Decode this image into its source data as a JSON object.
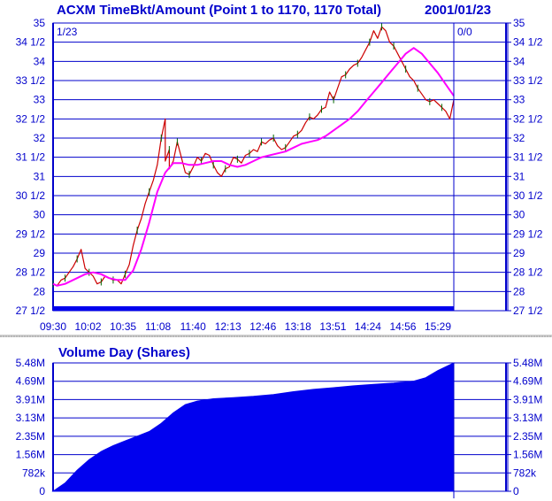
{
  "chart_data": [
    {
      "type": "line",
      "title": "ACXM TimeBkt/Amount (Point 1 to 1170, 1170 Total)",
      "date": "2001/01/23",
      "corner_left": "1/23",
      "corner_right": "0/0",
      "ylim": [
        27.5,
        35
      ],
      "yticks": [
        "27 1/2",
        "28",
        "28 1/2",
        "29",
        "29 1/2",
        "30",
        "30 1/2",
        "31",
        "31 1/2",
        "32",
        "32 1/2",
        "33",
        "33 1/2",
        "34",
        "34 1/2",
        "35"
      ],
      "xticks": [
        "09:30",
        "10:02",
        "10:35",
        "11:08",
        "11:40",
        "12:13",
        "12:46",
        "13:18",
        "13:51",
        "14:24",
        "14:56",
        "15:29"
      ],
      "grid": true,
      "series": [
        {
          "role": "price",
          "color": "#cc0000",
          "x": [
            0,
            0.01,
            0.02,
            0.03,
            0.04,
            0.05,
            0.06,
            0.07,
            0.08,
            0.09,
            0.1,
            0.11,
            0.12,
            0.13,
            0.14,
            0.15,
            0.16,
            0.17,
            0.18,
            0.19,
            0.2,
            0.21,
            0.22,
            0.23,
            0.24,
            0.25,
            0.26,
            0.27,
            0.28,
            0.28,
            0.29,
            0.29,
            0.3,
            0.31,
            0.32,
            0.33,
            0.34,
            0.35,
            0.36,
            0.37,
            0.38,
            0.39,
            0.4,
            0.41,
            0.42,
            0.43,
            0.44,
            0.45,
            0.46,
            0.47,
            0.48,
            0.49,
            0.5,
            0.51,
            0.52,
            0.53,
            0.54,
            0.55,
            0.56,
            0.57,
            0.58,
            0.59,
            0.6,
            0.61,
            0.62,
            0.63,
            0.64,
            0.65,
            0.66,
            0.67,
            0.68,
            0.69,
            0.7,
            0.71,
            0.72,
            0.73,
            0.74,
            0.75,
            0.76,
            0.77,
            0.78,
            0.79,
            0.8,
            0.81,
            0.82,
            0.83,
            0.84,
            0.85,
            0.86,
            0.87,
            0.88,
            0.89,
            0.9,
            0.91,
            0.92,
            0.93,
            0.94,
            0.95,
            0.96,
            0.97,
            0.98,
            0.99,
            1.0
          ],
          "y": [
            28.2,
            28.15,
            28.3,
            28.35,
            28.5,
            28.65,
            28.85,
            29.1,
            28.6,
            28.5,
            28.4,
            28.2,
            28.25,
            28.4,
            28.35,
            28.3,
            28.3,
            28.2,
            28.45,
            28.7,
            29.2,
            29.6,
            29.9,
            30.3,
            30.6,
            30.9,
            31.3,
            32.0,
            32.5,
            31.4,
            31.7,
            31.2,
            31.4,
            31.9,
            31.5,
            31.1,
            31.05,
            31.25,
            31.5,
            31.4,
            31.6,
            31.55,
            31.3,
            31.1,
            31.0,
            31.2,
            31.25,
            31.5,
            31.45,
            31.35,
            31.55,
            31.6,
            31.7,
            31.65,
            31.9,
            31.85,
            31.95,
            32.0,
            31.8,
            31.7,
            31.75,
            31.9,
            32.05,
            32.1,
            32.2,
            32.4,
            32.55,
            32.5,
            32.6,
            32.75,
            32.8,
            33.2,
            33.0,
            33.3,
            33.6,
            33.65,
            33.8,
            33.9,
            33.95,
            34.1,
            34.3,
            34.5,
            34.8,
            34.6,
            34.9,
            34.8,
            34.5,
            34.4,
            34.2,
            34.0,
            33.8,
            33.6,
            33.5,
            33.3,
            33.15,
            33.0,
            32.95,
            33.0,
            32.9,
            32.8,
            32.7,
            32.5,
            33.0
          ]
        },
        {
          "role": "moving-average",
          "color": "#ff00ff",
          "x": [
            0,
            0.01,
            0.03,
            0.05,
            0.08,
            0.1,
            0.12,
            0.14,
            0.16,
            0.18,
            0.2,
            0.22,
            0.24,
            0.26,
            0.28,
            0.3,
            0.32,
            0.34,
            0.36,
            0.38,
            0.4,
            0.42,
            0.44,
            0.46,
            0.48,
            0.5,
            0.52,
            0.54,
            0.56,
            0.58,
            0.6,
            0.62,
            0.64,
            0.66,
            0.68,
            0.7,
            0.72,
            0.74,
            0.76,
            0.78,
            0.8,
            0.82,
            0.84,
            0.86,
            0.88,
            0.9,
            0.92,
            0.94,
            0.96,
            0.98,
            1.0
          ],
          "y": [
            28.2,
            28.15,
            28.2,
            28.3,
            28.45,
            28.5,
            28.45,
            28.35,
            28.3,
            28.3,
            28.55,
            29.1,
            29.8,
            30.6,
            31.1,
            31.35,
            31.35,
            31.3,
            31.3,
            31.35,
            31.4,
            31.4,
            31.3,
            31.25,
            31.3,
            31.4,
            31.5,
            31.55,
            31.6,
            31.65,
            31.75,
            31.85,
            31.9,
            31.95,
            32.05,
            32.2,
            32.35,
            32.5,
            32.7,
            32.95,
            33.2,
            33.45,
            33.7,
            33.95,
            34.2,
            34.35,
            34.2,
            33.95,
            33.7,
            33.4,
            33.1
          ]
        }
      ]
    },
    {
      "type": "area",
      "title": "Volume Day (Shares)",
      "ylim": [
        0,
        5480000
      ],
      "yticks": [
        "0",
        "782k",
        "1.56M",
        "2.35M",
        "3.13M",
        "3.91M",
        "4.69M",
        "5.48M"
      ],
      "grid": true,
      "series": [
        {
          "color": "#0000ee",
          "x": [
            0,
            0.03,
            0.06,
            0.09,
            0.12,
            0.15,
            0.18,
            0.21,
            0.24,
            0.27,
            0.3,
            0.33,
            0.36,
            0.4,
            0.45,
            0.5,
            0.55,
            0.6,
            0.65,
            0.7,
            0.75,
            0.8,
            0.85,
            0.9,
            0.93,
            0.96,
            1.0
          ],
          "y": [
            0,
            350000,
            900000,
            1350000,
            1700000,
            1950000,
            2150000,
            2350000,
            2550000,
            2900000,
            3350000,
            3700000,
            3850000,
            3950000,
            4000000,
            4050000,
            4130000,
            4250000,
            4350000,
            4420000,
            4500000,
            4560000,
            4620000,
            4700000,
            4850000,
            5150000,
            5480000
          ]
        }
      ]
    }
  ]
}
